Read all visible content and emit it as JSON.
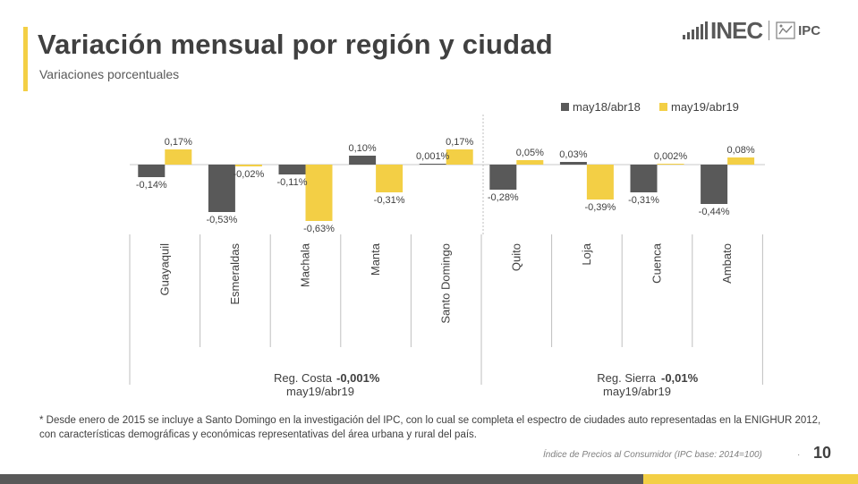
{
  "header": {
    "title": "Variación mensual por región y ciudad",
    "subtitle": "Variaciones porcentuales"
  },
  "logo": {
    "brand": "INEC",
    "product": "IPC"
  },
  "colors": {
    "series_a": "#595959",
    "series_b": "#f3cf45",
    "accent": "#f3cf45",
    "text": "#404040"
  },
  "chart_data": {
    "type": "bar",
    "title": "Variación mensual por región y ciudad",
    "xlabel": "",
    "ylabel": "Variaciones porcentuales",
    "categories": [
      "Guayaquil",
      "Esmeraldas",
      "Machala",
      "Manta",
      "Santo Domingo",
      "Quito",
      "Loja",
      "Cuenca",
      "Ambato"
    ],
    "series": [
      {
        "name": "may18/abr18",
        "values": [
          -0.14,
          -0.53,
          -0.11,
          0.1,
          0.001,
          -0.28,
          0.03,
          -0.31,
          -0.44
        ],
        "labels": [
          "-0,14%",
          "-0,53%",
          "-0,11%",
          "0,10%",
          "0,001%",
          "-0,28%",
          "0,03%",
          "-0,31%",
          "-0,44%"
        ]
      },
      {
        "name": "may19/abr19",
        "values": [
          0.17,
          -0.02,
          -0.63,
          -0.31,
          0.17,
          0.05,
          -0.39,
          0.002,
          0.08
        ],
        "labels": [
          "0,17%",
          "-0,02%",
          "-0,63%",
          "-0,31%",
          "0,17%",
          "0,05%",
          "-0,39%",
          "0,002%",
          "0,08%"
        ]
      }
    ],
    "legend_position": "top-right",
    "groups": [
      {
        "name": "Reg. Costa",
        "value": "-0,001%",
        "period": "may19/abr19",
        "categories": [
          "Guayaquil",
          "Esmeraldas",
          "Machala",
          "Manta",
          "Santo Domingo"
        ]
      },
      {
        "name": "Reg. Sierra",
        "value": "-0,01%",
        "period": "may19/abr19",
        "categories": [
          "Quito",
          "Loja",
          "Cuenca",
          "Ambato"
        ]
      }
    ]
  },
  "footnote": "*  Desde enero de 2015 se incluye a Santo Domingo en la investigación del IPC, con lo cual se completa el espectro de ciudades auto representadas en la ENIGHUR 2012, con características demográficas y económicas representativas del área urbana y rural del país.",
  "footer": {
    "source": "Índice de Precios al Consumidor (IPC base: 2014=100)",
    "separator": "·",
    "page_number": "10"
  }
}
